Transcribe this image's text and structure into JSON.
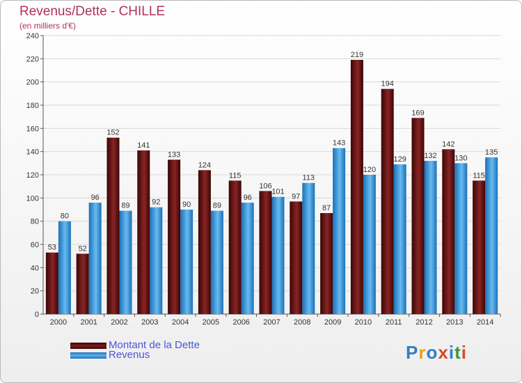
{
  "title": "Revenus/Dette - CHILLE",
  "subtitle": "(en milliers d'€)",
  "logo": {
    "text": "Proxiti",
    "colors": [
      "#2e7fc4",
      "#e8a318",
      "#2e7fc4",
      "#d84a2a",
      "#2e7fc4",
      "#3a9a3a",
      "#d84a2a"
    ]
  },
  "colors": {
    "dette": "#6b1414",
    "revenus": "#3d9be0",
    "axis_text": "#333333",
    "grid": "#d8d8d8"
  },
  "chart_data": {
    "type": "bar",
    "categories": [
      "2000",
      "2001",
      "2002",
      "2003",
      "2004",
      "2005",
      "2006",
      "2007",
      "2008",
      "2009",
      "2010",
      "2011",
      "2012",
      "2013",
      "2014"
    ],
    "series": [
      {
        "name": "Montant de la Dette",
        "values": [
          53,
          52,
          152,
          141,
          133,
          124,
          115,
          106,
          97,
          87,
          219,
          194,
          169,
          142,
          115
        ]
      },
      {
        "name": "Revenus",
        "values": [
          80,
          96,
          89,
          92,
          90,
          89,
          96,
          101,
          113,
          143,
          120,
          129,
          132,
          130,
          135
        ]
      }
    ],
    "ylim": [
      0,
      240
    ],
    "yticks": [
      0,
      20,
      40,
      60,
      80,
      100,
      120,
      140,
      160,
      180,
      200,
      220,
      240
    ],
    "grid": true,
    "legend": "bottom-left"
  }
}
